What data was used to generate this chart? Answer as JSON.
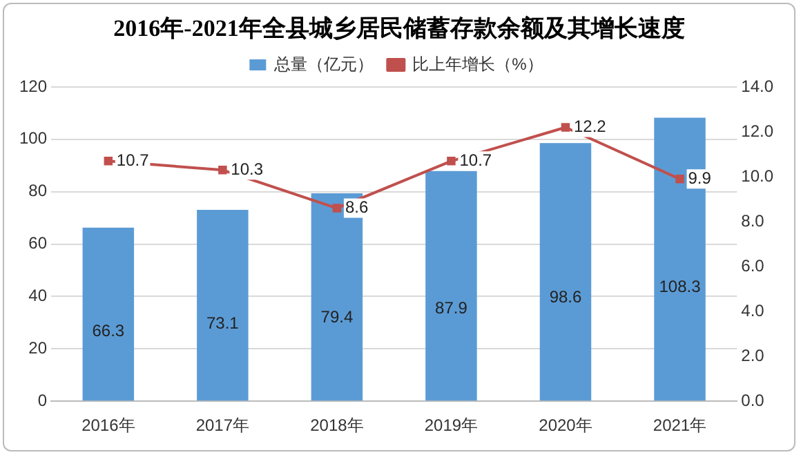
{
  "chart_data": {
    "type": "bar",
    "title": "2016年-2021年全县城乡居民储蓄存款余额及其增长速度",
    "categories": [
      "2016年",
      "2017年",
      "2018年",
      "2019年",
      "2020年",
      "2021年"
    ],
    "series": [
      {
        "name": "总量（亿元）",
        "color": "#5b9bd5",
        "values": [
          66.3,
          73.1,
          79.4,
          87.9,
          98.6,
          108.3
        ]
      },
      {
        "name": "比上年增长（%）",
        "type": "line",
        "axis": "y2",
        "color": "#c0504d",
        "values": [
          10.7,
          10.3,
          8.6,
          10.7,
          12.2,
          9.9
        ]
      }
    ],
    "ylim": [
      0,
      120
    ],
    "yticks": [
      0,
      20,
      40,
      60,
      80,
      100,
      120
    ],
    "y2lim": [
      0,
      14
    ],
    "y2ticks": [
      {
        "value": 0,
        "label": "0.0"
      },
      {
        "value": 2,
        "label": "2.0"
      },
      {
        "value": 4,
        "label": "4.0"
      },
      {
        "value": 6,
        "label": "6.0"
      },
      {
        "value": 8,
        "label": "8.0"
      },
      {
        "value": 10,
        "label": "10.0"
      },
      {
        "value": 12,
        "label": "12.0"
      },
      {
        "value": 14,
        "label": "14.0"
      }
    ],
    "grid": "y",
    "legend": "top",
    "marker": "square",
    "line_style": "solid",
    "data_labels": true
  }
}
